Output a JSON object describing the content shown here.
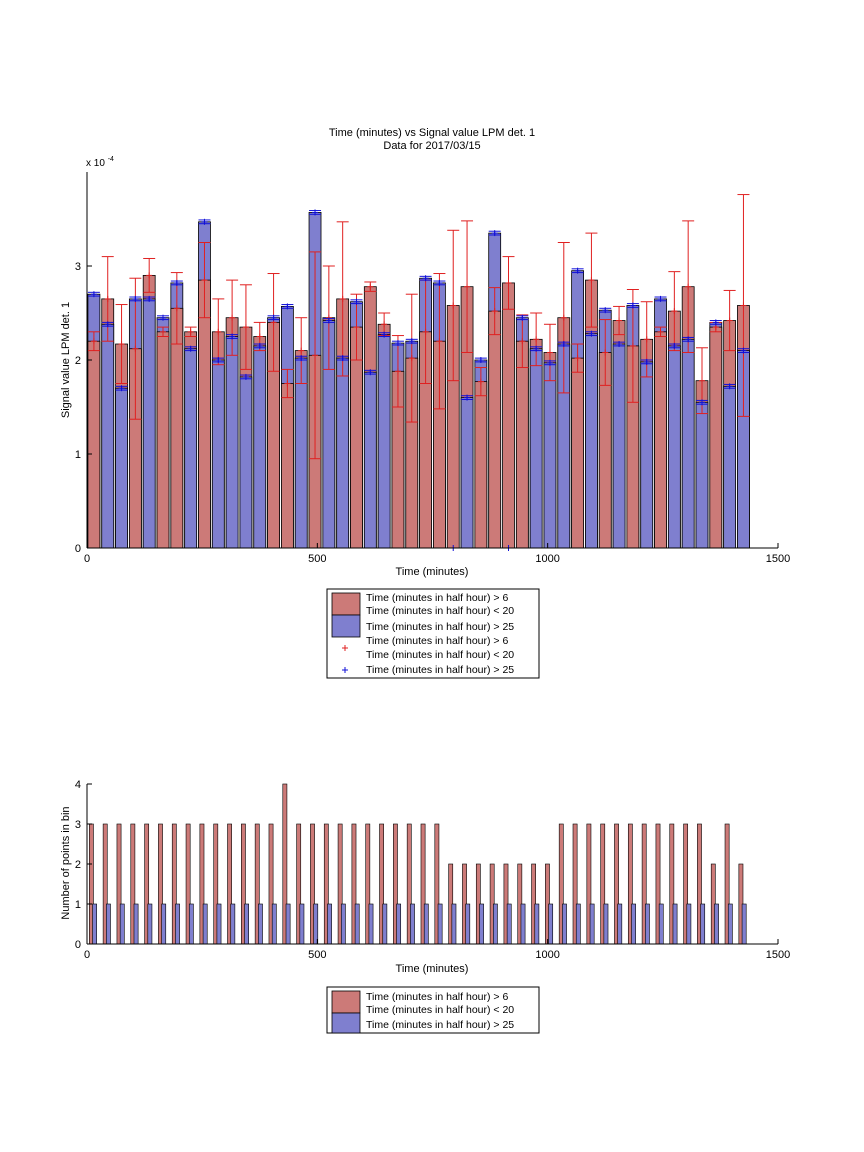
{
  "colors": {
    "red_bar": "#cc7a78",
    "blue_bar": "#7f7fcf",
    "red_marker": "#e02020",
    "blue_marker": "#1010d8",
    "axis": "#000000"
  },
  "chart_data": [
    {
      "type": "bar",
      "title": "Time (minutes) vs Signal value LPM det. 1",
      "subtitle": "Data for 2017/03/15",
      "xlabel": "Time (minutes)",
      "ylabel": "Signal value LPM det. 1",
      "y_exponent_label": "x 10",
      "y_exponent_power": "-4",
      "xlim": [
        0,
        1500
      ],
      "ylim": [
        0,
        4
      ],
      "y_multiplier": 0.0001,
      "xticks": [
        0,
        500,
        1000,
        1500
      ],
      "yticks": [
        0,
        1,
        2,
        3
      ],
      "x": [
        15,
        45,
        75,
        105,
        135,
        165,
        195,
        225,
        255,
        285,
        315,
        345,
        375,
        405,
        435,
        465,
        495,
        525,
        555,
        585,
        615,
        645,
        675,
        705,
        735,
        765,
        795,
        825,
        855,
        885,
        915,
        945,
        975,
        1005,
        1035,
        1065,
        1095,
        1125,
        1155,
        1185,
        1215,
        1245,
        1275,
        1305,
        1335,
        1365,
        1395,
        1425
      ],
      "grid": false,
      "legend_position": "below",
      "series": [
        {
          "name": "Time (minutes in half hour) > 6\nTime (minutes in half hour) < 20",
          "label_line1": "Time (minutes in half hour) > 6",
          "label_line2": "Time (minutes in half hour) < 20",
          "values": [
            2.2,
            2.65,
            2.17,
            2.12,
            2.9,
            2.3,
            2.55,
            2.3,
            2.85,
            2.3,
            2.45,
            2.35,
            2.25,
            2.4,
            1.75,
            2.1,
            2.05,
            2.45,
            2.65,
            2.35,
            2.78,
            2.38,
            1.88,
            2.02,
            2.3,
            2.2,
            2.58,
            2.78,
            1.77,
            2.52,
            2.82,
            2.2,
            2.22,
            2.08,
            2.45,
            2.02,
            2.85,
            2.08,
            2.42,
            2.15,
            2.22,
            2.3,
            2.52,
            2.78,
            1.78,
            2.35,
            2.42,
            2.58
          ],
          "error": [
            0.1,
            0.45,
            0.42,
            0.75,
            0.18,
            0.05,
            0.38,
            0.05,
            0.4,
            0.35,
            0.4,
            0.45,
            0.15,
            0.52,
            0.15,
            0.35,
            1.1,
            0.55,
            0.82,
            0.35,
            0.05,
            0.12,
            0.38,
            0.68,
            0.55,
            0.72,
            0.8,
            0.7,
            0.15,
            0.25,
            0.28,
            0.28,
            0.28,
            0.3,
            0.8,
            0.15,
            0.5,
            0.35,
            0.15,
            0.6,
            0.4,
            0.05,
            0.42,
            0.7,
            0.35,
            0.05,
            0.32,
            1.18
          ]
        },
        {
          "name": "Time (minutes in half hour) > 25",
          "values": [
            2.7,
            2.38,
            1.7,
            2.65,
            2.65,
            2.45,
            2.82,
            2.12,
            3.47,
            2.0,
            2.25,
            1.82,
            2.15,
            2.45,
            2.57,
            2.02,
            3.57,
            2.42,
            2.02,
            2.62,
            1.87,
            2.27,
            2.18,
            2.2,
            2.87,
            2.82,
            0.0,
            1.6,
            2.0,
            3.35,
            0.0,
            2.45,
            2.12,
            1.97,
            2.17,
            2.95,
            2.28,
            2.53,
            2.17,
            2.58,
            1.98,
            2.65,
            2.15,
            2.22,
            1.55,
            2.4,
            1.72,
            2.1
          ],
          "error": [
            0.02,
            0.02,
            0.02,
            0.02,
            0.02,
            0.02,
            0.02,
            0.02,
            0.02,
            0.02,
            0.02,
            0.02,
            0.02,
            0.02,
            0.02,
            0.02,
            0.02,
            0.02,
            0.02,
            0.02,
            0.02,
            0.02,
            0.02,
            0.02,
            0.02,
            0.02,
            0.0,
            0.02,
            0.02,
            0.02,
            0.0,
            0.02,
            0.02,
            0.02,
            0.02,
            0.02,
            0.02,
            0.02,
            0.02,
            0.02,
            0.02,
            0.02,
            0.02,
            0.02,
            0.02,
            0.02,
            0.02,
            0.02
          ]
        }
      ],
      "legend": [
        {
          "swatch": "red_bar",
          "line1": "Time (minutes in half hour) > 6",
          "line2": "Time (minutes in half hour) < 20"
        },
        {
          "swatch": "blue_bar",
          "line1": "Time (minutes in half hour) > 25",
          "line2": ""
        },
        {
          "swatch": "red_marker",
          "line1": "Time (minutes in half hour) > 6",
          "line2": "Time (minutes in half hour) < 20"
        },
        {
          "swatch": "blue_marker",
          "line1": "Time (minutes in half hour) > 25",
          "line2": ""
        }
      ]
    },
    {
      "type": "bar",
      "title": "",
      "xlabel": "Time (minutes)",
      "ylabel": "Number of points in bin",
      "xlim": [
        0,
        1500
      ],
      "ylim": [
        0,
        4
      ],
      "xticks": [
        0,
        500,
        1000,
        1500
      ],
      "yticks": [
        0,
        1,
        2,
        3,
        4
      ],
      "x": [
        15,
        45,
        75,
        105,
        135,
        165,
        195,
        225,
        255,
        285,
        315,
        345,
        375,
        405,
        435,
        465,
        495,
        525,
        555,
        585,
        615,
        645,
        675,
        705,
        735,
        765,
        795,
        825,
        855,
        885,
        915,
        945,
        975,
        1005,
        1035,
        1065,
        1095,
        1125,
        1155,
        1185,
        1215,
        1245,
        1275,
        1305,
        1335,
        1365,
        1395,
        1425
      ],
      "grid": false,
      "legend_position": "below",
      "series": [
        {
          "name": "Time (minutes in half hour) > 6\nTime (minutes in half hour) < 20",
          "values": [
            3,
            3,
            3,
            3,
            3,
            3,
            3,
            3,
            3,
            3,
            3,
            3,
            3,
            3,
            4,
            3,
            3,
            3,
            3,
            3,
            3,
            3,
            3,
            3,
            3,
            3,
            2,
            2,
            2,
            2,
            2,
            2,
            2,
            2,
            3,
            3,
            3,
            3,
            3,
            3,
            3,
            3,
            3,
            3,
            3,
            2,
            3,
            2
          ]
        },
        {
          "name": "Time (minutes in half hour) > 25",
          "values": [
            1,
            1,
            1,
            1,
            1,
            1,
            1,
            1,
            1,
            1,
            1,
            1,
            1,
            1,
            1,
            1,
            1,
            1,
            1,
            1,
            1,
            1,
            1,
            1,
            1,
            1,
            1,
            1,
            1,
            1,
            1,
            1,
            1,
            1,
            1,
            1,
            1,
            1,
            1,
            1,
            1,
            1,
            1,
            1,
            1,
            1,
            1,
            1
          ]
        }
      ],
      "legend": [
        {
          "swatch": "red_bar",
          "line1": "Time (minutes in half hour) > 6",
          "line2": "Time (minutes in half hour) < 20"
        },
        {
          "swatch": "blue_bar",
          "line1": "Time (minutes in half hour) > 25",
          "line2": ""
        }
      ]
    }
  ]
}
